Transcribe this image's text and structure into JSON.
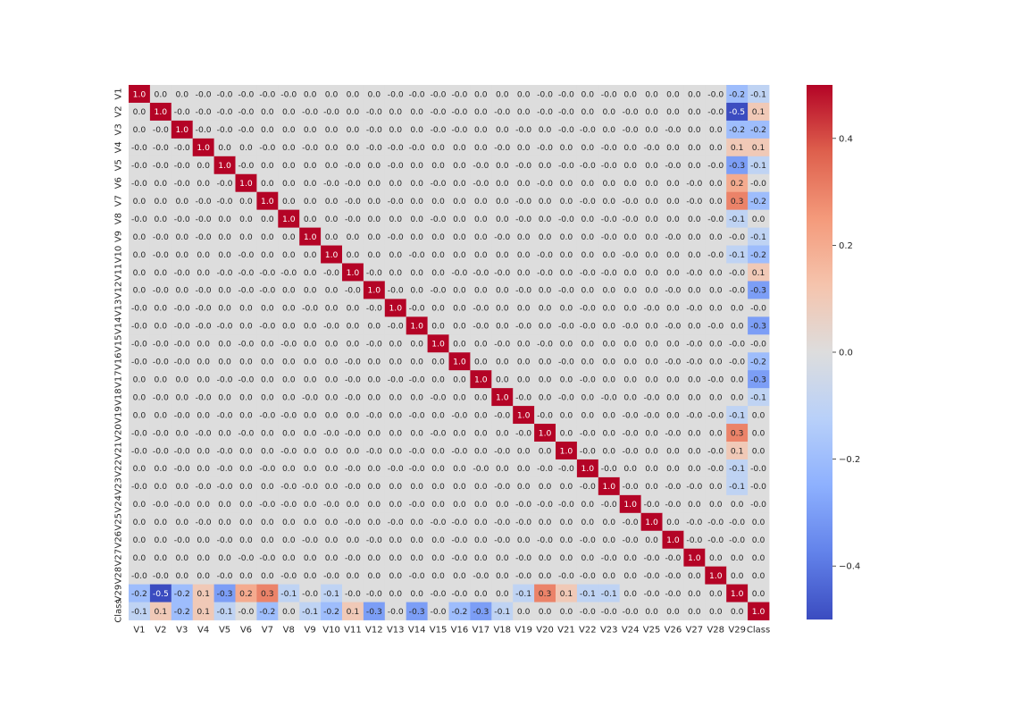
{
  "chart_data": {
    "type": "heatmap",
    "title": "",
    "xlabel": "",
    "ylabel": "",
    "labels": [
      "V1",
      "V2",
      "V3",
      "V4",
      "V5",
      "V6",
      "V7",
      "V8",
      "V9",
      "V10",
      "V11",
      "V12",
      "V13",
      "V14",
      "V15",
      "V16",
      "V17",
      "V18",
      "V19",
      "V20",
      "V21",
      "V22",
      "V23",
      "V24",
      "V25",
      "V26",
      "V27",
      "V28",
      "V29",
      "Class"
    ],
    "matrix": [
      [
        "1.0",
        "0.0",
        "0.0",
        "-0.0",
        "-0.0",
        "-0.0",
        "-0.0",
        "-0.0",
        "0.0",
        "0.0",
        "0.0",
        "0.0",
        "-0.0",
        "-0.0",
        "-0.0",
        "-0.0",
        "0.0",
        "0.0",
        "0.0",
        "-0.0",
        "-0.0",
        "0.0",
        "-0.0",
        "0.0",
        "0.0",
        "0.0",
        "0.0",
        "-0.0",
        "-0.2",
        "-0.1"
      ],
      [
        "0.0",
        "1.0",
        "-0.0",
        "-0.0",
        "-0.0",
        "-0.0",
        "0.0",
        "0.0",
        "-0.0",
        "-0.0",
        "0.0",
        "-0.0",
        "0.0",
        "0.0",
        "-0.0",
        "-0.0",
        "0.0",
        "-0.0",
        "0.0",
        "-0.0",
        "-0.0",
        "0.0",
        "0.0",
        "-0.0",
        "0.0",
        "0.0",
        "0.0",
        "-0.0",
        "-0.5",
        "0.1"
      ],
      [
        "0.0",
        "-0.0",
        "1.0",
        "-0.0",
        "-0.0",
        "-0.0",
        "0.0",
        "0.0",
        "0.0",
        "0.0",
        "0.0",
        "-0.0",
        "0.0",
        "0.0",
        "-0.0",
        "-0.0",
        "0.0",
        "0.0",
        "-0.0",
        "0.0",
        "-0.0",
        "-0.0",
        "0.0",
        "-0.0",
        "0.0",
        "-0.0",
        "0.0",
        "0.0",
        "-0.2",
        "-0.2"
      ],
      [
        "-0.0",
        "-0.0",
        "-0.0",
        "1.0",
        "0.0",
        "0.0",
        "-0.0",
        "0.0",
        "-0.0",
        "0.0",
        "0.0",
        "-0.0",
        "-0.0",
        "-0.0",
        "0.0",
        "0.0",
        "0.0",
        "-0.0",
        "0.0",
        "-0.0",
        "0.0",
        "0.0",
        "-0.0",
        "0.0",
        "-0.0",
        "0.0",
        "0.0",
        "0.0",
        "0.1",
        "0.1"
      ],
      [
        "-0.0",
        "-0.0",
        "-0.0",
        "0.0",
        "1.0",
        "-0.0",
        "0.0",
        "0.0",
        "0.0",
        "0.0",
        "-0.0",
        "0.0",
        "-0.0",
        "0.0",
        "0.0",
        "0.0",
        "-0.0",
        "0.0",
        "-0.0",
        "0.0",
        "-0.0",
        "-0.0",
        "-0.0",
        "0.0",
        "0.0",
        "-0.0",
        "0.0",
        "-0.0",
        "-0.3",
        "-0.1"
      ],
      [
        "-0.0",
        "0.0",
        "-0.0",
        "0.0",
        "-0.0",
        "1.0",
        "0.0",
        "0.0",
        "0.0",
        "-0.0",
        "-0.0",
        "0.0",
        "0.0",
        "0.0",
        "-0.0",
        "0.0",
        "-0.0",
        "0.0",
        "0.0",
        "-0.0",
        "0.0",
        "0.0",
        "0.0",
        "0.0",
        "0.0",
        "0.0",
        "-0.0",
        "0.0",
        "0.2",
        "-0.0"
      ],
      [
        "0.0",
        "0.0",
        "0.0",
        "-0.0",
        "-0.0",
        "0.0",
        "1.0",
        "0.0",
        "0.0",
        "0.0",
        "-0.0",
        "0.0",
        "-0.0",
        "0.0",
        "0.0",
        "0.0",
        "0.0",
        "0.0",
        "-0.0",
        "0.0",
        "0.0",
        "-0.0",
        "0.0",
        "-0.0",
        "0.0",
        "0.0",
        "-0.0",
        "0.0",
        "0.3",
        "-0.2"
      ],
      [
        "-0.0",
        "0.0",
        "-0.0",
        "-0.0",
        "0.0",
        "0.0",
        "0.0",
        "1.0",
        "0.0",
        "0.0",
        "-0.0",
        "0.0",
        "0.0",
        "0.0",
        "-0.0",
        "0.0",
        "0.0",
        "0.0",
        "-0.0",
        "0.0",
        "-0.0",
        "0.0",
        "-0.0",
        "-0.0",
        "0.0",
        "0.0",
        "0.0",
        "-0.0",
        "-0.1",
        "0.0"
      ],
      [
        "0.0",
        "-0.0",
        "0.0",
        "-0.0",
        "0.0",
        "0.0",
        "0.0",
        "0.0",
        "1.0",
        "0.0",
        "0.0",
        "0.0",
        "-0.0",
        "0.0",
        "0.0",
        "0.0",
        "0.0",
        "-0.0",
        "0.0",
        "0.0",
        "0.0",
        "0.0",
        "-0.0",
        "0.0",
        "0.0",
        "-0.0",
        "0.0",
        "0.0",
        "-0.0",
        "-0.1"
      ],
      [
        "0.0",
        "-0.0",
        "0.0",
        "0.0",
        "0.0",
        "-0.0",
        "0.0",
        "0.0",
        "0.0",
        "1.0",
        "0.0",
        "0.0",
        "0.0",
        "-0.0",
        "0.0",
        "0.0",
        "0.0",
        "0.0",
        "0.0",
        "-0.0",
        "0.0",
        "0.0",
        "0.0",
        "-0.0",
        "0.0",
        "0.0",
        "0.0",
        "-0.0",
        "-0.1",
        "-0.2"
      ],
      [
        "0.0",
        "0.0",
        "-0.0",
        "0.0",
        "-0.0",
        "-0.0",
        "-0.0",
        "-0.0",
        "0.0",
        "-0.0",
        "1.0",
        "-0.0",
        "0.0",
        "0.0",
        "0.0",
        "-0.0",
        "-0.0",
        "-0.0",
        "0.0",
        "-0.0",
        "0.0",
        "-0.0",
        "-0.0",
        "0.0",
        "0.0",
        "0.0",
        "-0.0",
        "0.0",
        "-0.0",
        "0.1"
      ],
      [
        "0.0",
        "-0.0",
        "0.0",
        "-0.0",
        "0.0",
        "-0.0",
        "-0.0",
        "0.0",
        "0.0",
        "0.0",
        "-0.0",
        "1.0",
        "-0.0",
        "0.0",
        "-0.0",
        "0.0",
        "0.0",
        "0.0",
        "-0.0",
        "0.0",
        "-0.0",
        "0.0",
        "0.0",
        "0.0",
        "0.0",
        "-0.0",
        "0.0",
        "0.0",
        "-0.0",
        "-0.3"
      ],
      [
        "-0.0",
        "0.0",
        "-0.0",
        "-0.0",
        "0.0",
        "0.0",
        "0.0",
        "0.0",
        "-0.0",
        "0.0",
        "0.0",
        "-0.0",
        "1.0",
        "-0.0",
        "0.0",
        "0.0",
        "-0.0",
        "0.0",
        "0.0",
        "0.0",
        "0.0",
        "-0.0",
        "0.0",
        "0.0",
        "-0.0",
        "0.0",
        "-0.0",
        "0.0",
        "0.0",
        "-0.0"
      ],
      [
        "-0.0",
        "0.0",
        "-0.0",
        "-0.0",
        "-0.0",
        "0.0",
        "-0.0",
        "0.0",
        "0.0",
        "-0.0",
        "0.0",
        "0.0",
        "-0.0",
        "1.0",
        "0.0",
        "0.0",
        "-0.0",
        "0.0",
        "-0.0",
        "0.0",
        "-0.0",
        "-0.0",
        "0.0",
        "-0.0",
        "0.0",
        "-0.0",
        "0.0",
        "-0.0",
        "0.0",
        "-0.3"
      ],
      [
        "-0.0",
        "-0.0",
        "-0.0",
        "0.0",
        "0.0",
        "-0.0",
        "0.0",
        "-0.0",
        "0.0",
        "0.0",
        "0.0",
        "-0.0",
        "0.0",
        "0.0",
        "1.0",
        "0.0",
        "0.0",
        "-0.0",
        "0.0",
        "-0.0",
        "0.0",
        "0.0",
        "0.0",
        "0.0",
        "0.0",
        "0.0",
        "-0.0",
        "0.0",
        "-0.0",
        "-0.0"
      ],
      [
        "-0.0",
        "-0.0",
        "-0.0",
        "0.0",
        "0.0",
        "0.0",
        "0.0",
        "0.0",
        "0.0",
        "0.0",
        "-0.0",
        "0.0",
        "0.0",
        "0.0",
        "0.0",
        "1.0",
        "0.0",
        "0.0",
        "0.0",
        "0.0",
        "-0.0",
        "0.0",
        "0.0",
        "0.0",
        "0.0",
        "-0.0",
        "-0.0",
        "0.0",
        "-0.0",
        "-0.2"
      ],
      [
        "0.0",
        "0.0",
        "0.0",
        "0.0",
        "-0.0",
        "-0.0",
        "0.0",
        "0.0",
        "0.0",
        "0.0",
        "-0.0",
        "0.0",
        "-0.0",
        "-0.0",
        "0.0",
        "0.0",
        "1.0",
        "0.0",
        "0.0",
        "0.0",
        "0.0",
        "-0.0",
        "0.0",
        "0.0",
        "0.0",
        "0.0",
        "0.0",
        "-0.0",
        "0.0",
        "-0.3"
      ],
      [
        "0.0",
        "-0.0",
        "0.0",
        "-0.0",
        "0.0",
        "0.0",
        "0.0",
        "0.0",
        "-0.0",
        "0.0",
        "-0.0",
        "0.0",
        "0.0",
        "0.0",
        "-0.0",
        "0.0",
        "0.0",
        "1.0",
        "-0.0",
        "0.0",
        "-0.0",
        "0.0",
        "-0.0",
        "0.0",
        "-0.0",
        "0.0",
        "0.0",
        "0.0",
        "0.0",
        "-0.1"
      ],
      [
        "0.0",
        "0.0",
        "-0.0",
        "0.0",
        "-0.0",
        "0.0",
        "-0.0",
        "-0.0",
        "0.0",
        "0.0",
        "0.0",
        "-0.0",
        "0.0",
        "-0.0",
        "0.0",
        "-0.0",
        "0.0",
        "-0.0",
        "1.0",
        "-0.0",
        "0.0",
        "0.0",
        "0.0",
        "-0.0",
        "-0.0",
        "0.0",
        "-0.0",
        "-0.0",
        "-0.1",
        "0.0"
      ],
      [
        "-0.0",
        "-0.0",
        "0.0",
        "-0.0",
        "0.0",
        "-0.0",
        "0.0",
        "0.0",
        "0.0",
        "-0.0",
        "-0.0",
        "0.0",
        "0.0",
        "0.0",
        "-0.0",
        "0.0",
        "0.0",
        "0.0",
        "-0.0",
        "1.0",
        "0.0",
        "-0.0",
        "0.0",
        "-0.0",
        "0.0",
        "-0.0",
        "0.0",
        "0.0",
        "0.3",
        "0.0"
      ],
      [
        "-0.0",
        "-0.0",
        "-0.0",
        "0.0",
        "-0.0",
        "0.0",
        "0.0",
        "-0.0",
        "0.0",
        "0.0",
        "0.0",
        "-0.0",
        "0.0",
        "-0.0",
        "0.0",
        "-0.0",
        "0.0",
        "-0.0",
        "0.0",
        "0.0",
        "1.0",
        "-0.0",
        "0.0",
        "-0.0",
        "0.0",
        "0.0",
        "0.0",
        "-0.0",
        "0.1",
        "0.0"
      ],
      [
        "0.0",
        "0.0",
        "-0.0",
        "0.0",
        "-0.0",
        "0.0",
        "-0.0",
        "0.0",
        "0.0",
        "0.0",
        "-0.0",
        "0.0",
        "-0.0",
        "-0.0",
        "0.0",
        "0.0",
        "-0.0",
        "0.0",
        "0.0",
        "-0.0",
        "-0.0",
        "1.0",
        "-0.0",
        "0.0",
        "0.0",
        "0.0",
        "0.0",
        "-0.0",
        "-0.1",
        "-0.0"
      ],
      [
        "-0.0",
        "0.0",
        "0.0",
        "-0.0",
        "-0.0",
        "0.0",
        "0.0",
        "-0.0",
        "-0.0",
        "0.0",
        "-0.0",
        "0.0",
        "0.0",
        "0.0",
        "0.0",
        "0.0",
        "0.0",
        "-0.0",
        "0.0",
        "0.0",
        "0.0",
        "-0.0",
        "1.0",
        "-0.0",
        "0.0",
        "-0.0",
        "-0.0",
        "0.0",
        "-0.1",
        "-0.0"
      ],
      [
        "0.0",
        "-0.0",
        "-0.0",
        "0.0",
        "0.0",
        "0.0",
        "-0.0",
        "-0.0",
        "0.0",
        "-0.0",
        "0.0",
        "0.0",
        "0.0",
        "-0.0",
        "0.0",
        "0.0",
        "0.0",
        "0.0",
        "-0.0",
        "-0.0",
        "-0.0",
        "0.0",
        "-0.0",
        "1.0",
        "-0.0",
        "-0.0",
        "0.0",
        "0.0",
        "0.0",
        "-0.0"
      ],
      [
        "0.0",
        "0.0",
        "0.0",
        "-0.0",
        "0.0",
        "0.0",
        "0.0",
        "0.0",
        "0.0",
        "0.0",
        "-0.0",
        "0.0",
        "-0.0",
        "0.0",
        "-0.0",
        "-0.0",
        "0.0",
        "-0.0",
        "-0.0",
        "0.0",
        "0.0",
        "0.0",
        "0.0",
        "-0.0",
        "1.0",
        "0.0",
        "-0.0",
        "-0.0",
        "-0.0",
        "0.0"
      ],
      [
        "0.0",
        "0.0",
        "-0.0",
        "0.0",
        "-0.0",
        "0.0",
        "0.0",
        "0.0",
        "-0.0",
        "0.0",
        "0.0",
        "-0.0",
        "0.0",
        "0.0",
        "0.0",
        "-0.0",
        "0.0",
        "-0.0",
        "0.0",
        "-0.0",
        "0.0",
        "-0.0",
        "0.0",
        "-0.0",
        "0.0",
        "1.0",
        "-0.0",
        "-0.0",
        "-0.0",
        "0.0"
      ],
      [
        "0.0",
        "0.0",
        "0.0",
        "0.0",
        "0.0",
        "-0.0",
        "-0.0",
        "0.0",
        "0.0",
        "0.0",
        "-0.0",
        "0.0",
        "0.0",
        "0.0",
        "0.0",
        "-0.0",
        "0.0",
        "0.0",
        "-0.0",
        "0.0",
        "0.0",
        "0.0",
        "-0.0",
        "0.0",
        "-0.0",
        "-0.0",
        "1.0",
        "0.0",
        "0.0",
        "0.0"
      ],
      [
        "-0.0",
        "-0.0",
        "0.0",
        "0.0",
        "-0.0",
        "0.0",
        "0.0",
        "-0.0",
        "0.0",
        "-0.0",
        "0.0",
        "0.0",
        "0.0",
        "-0.0",
        "0.0",
        "0.0",
        "-0.0",
        "0.0",
        "-0.0",
        "0.0",
        "-0.0",
        "-0.0",
        "0.0",
        "0.0",
        "-0.0",
        "-0.0",
        "0.0",
        "1.0",
        "0.0",
        "0.0"
      ],
      [
        "-0.2",
        "-0.5",
        "-0.2",
        "0.1",
        "-0.3",
        "0.2",
        "0.3",
        "-0.1",
        "-0.0",
        "-0.1",
        "-0.0",
        "-0.0",
        "0.0",
        "0.0",
        "-0.0",
        "-0.0",
        "0.0",
        "0.0",
        "-0.1",
        "0.3",
        "0.1",
        "-0.1",
        "-0.1",
        "0.0",
        "-0.0",
        "-0.0",
        "0.0",
        "0.0",
        "1.0",
        "0.0"
      ],
      [
        "-0.1",
        "0.1",
        "-0.2",
        "0.1",
        "-0.1",
        "-0.0",
        "-0.2",
        "0.0",
        "-0.1",
        "-0.2",
        "0.1",
        "-0.3",
        "-0.0",
        "-0.3",
        "-0.0",
        "-0.2",
        "-0.3",
        "-0.1",
        "0.0",
        "0.0",
        "0.0",
        "-0.0",
        "-0.0",
        "-0.0",
        "0.0",
        "0.0",
        "0.0",
        "0.0",
        "0.0",
        "1.0"
      ]
    ],
    "colormap": "coolwarm",
    "vmin": -0.5,
    "vmax": 0.5,
    "colorbar_ticks": [
      "0.4",
      "0.2",
      "0.0",
      "−0.2",
      "−0.4"
    ],
    "grid": false,
    "legend": "colorbar-right"
  }
}
